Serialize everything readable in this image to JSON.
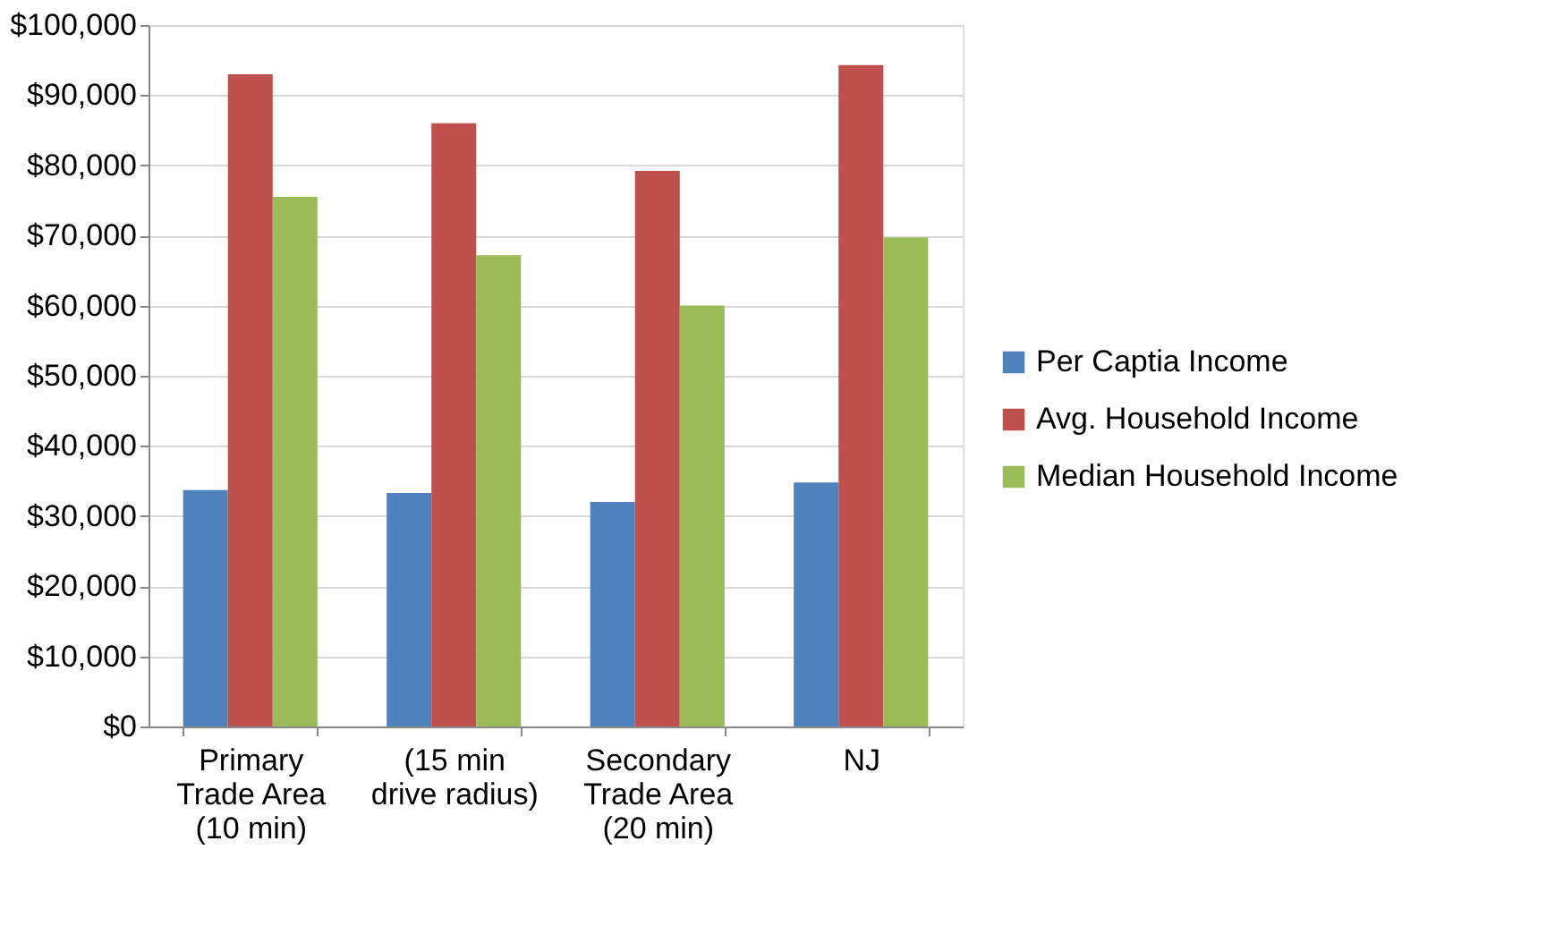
{
  "chart_data": {
    "type": "bar",
    "categories": [
      "Primary\nTrade Area\n(10 min)",
      "(15 min\ndrive radius)",
      "Secondary\nTrade Area\n(20 min)",
      "NJ"
    ],
    "series": [
      {
        "name": "Per Captia Income",
        "color": "#4f81bd",
        "values": [
          33700,
          33300,
          32000,
          34800
        ]
      },
      {
        "name": "Avg. Household Income",
        "color": "#c0504d",
        "values": [
          93000,
          86000,
          79200,
          94300
        ]
      },
      {
        "name": "Median Household Income",
        "color": "#9bbb59",
        "values": [
          75500,
          67200,
          60000,
          69700
        ]
      }
    ],
    "ylim": [
      0,
      100000
    ],
    "yticks": [
      {
        "value": 0,
        "label": "$0"
      },
      {
        "value": 10000,
        "label": "$10,000"
      },
      {
        "value": 20000,
        "label": "$20,000"
      },
      {
        "value": 30000,
        "label": "$30,000"
      },
      {
        "value": 40000,
        "label": "$40,000"
      },
      {
        "value": 50000,
        "label": "$50,000"
      },
      {
        "value": 60000,
        "label": "$60,000"
      },
      {
        "value": 70000,
        "label": "$70,000"
      },
      {
        "value": 80000,
        "label": "$80,000"
      },
      {
        "value": 90000,
        "label": "$90,000"
      },
      {
        "value": 100000,
        "label": "$100,000"
      }
    ],
    "grid": "y",
    "legend": "right"
  }
}
